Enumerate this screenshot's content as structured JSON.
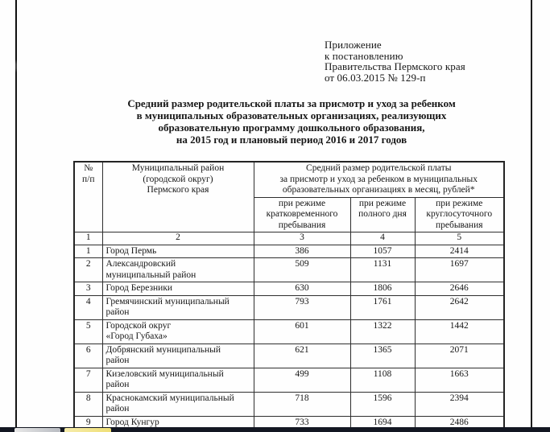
{
  "document": {
    "corner_note": {
      "lines": [
        "Приложение",
        "к постановлению",
        "Правительства Пермского края",
        "от 06.03.2015 № 129-п"
      ]
    },
    "title_lines": [
      "Средний размер родительской платы за присмотр и уход за ребенком",
      "в муниципальных образовательных организациях, реализующих",
      "образовательную программу дошкольного образования,",
      "на 2015 год и плановый период 2016 и 2017 годов"
    ]
  },
  "table": {
    "header": {
      "col_num": "№\nп/п",
      "col_district": "Муниципальный район\n(городской округ)\nПермского края",
      "col_payment_group": "Средний размер родительской платы\nза присмотр и уход за ребенком в муниципальных\nобразовательных организациях в месяц, рублей*",
      "sub_short_stay": "при режиме\nкратковременного\nпребывания",
      "sub_full_day": "при режиме\nполного дня",
      "sub_round_clock": "при режиме\nкруглосуточного\nпребывания"
    },
    "numbering_row": [
      "1",
      "2",
      "3",
      "4",
      "5"
    ],
    "rows": [
      {
        "num": "1",
        "district": "Город Пермь",
        "short_stay": "386",
        "full_day": "1057",
        "round_clock": "2414"
      },
      {
        "num": "2",
        "district": "Александровский\nмуниципальный район",
        "short_stay": "509",
        "full_day": "1131",
        "round_clock": "1697"
      },
      {
        "num": "3",
        "district": "Город Березники",
        "short_stay": "630",
        "full_day": "1806",
        "round_clock": "2646"
      },
      {
        "num": "4",
        "district": "Гремячинский муниципальный\nрайон",
        "short_stay": "793",
        "full_day": "1761",
        "round_clock": "2642"
      },
      {
        "num": "5",
        "district": "Городской округ\n«Город Губаха»",
        "short_stay": "601",
        "full_day": "1322",
        "round_clock": "1442"
      },
      {
        "num": "6",
        "district": "Добрянский муниципальный\nрайон",
        "short_stay": "621",
        "full_day": "1365",
        "round_clock": "2071"
      },
      {
        "num": "7",
        "district": "Кизеловский муниципальный\nрайон",
        "short_stay": "499",
        "full_day": "1108",
        "round_clock": "1663"
      },
      {
        "num": "8",
        "district": "Краснокамский муниципальный\nрайон",
        "short_stay": "718",
        "full_day": "1596",
        "round_clock": "2394"
      },
      {
        "num": "9",
        "district": "Город Кунгур",
        "short_stay": "733",
        "full_day": "1694",
        "round_clock": "2486"
      }
    ]
  }
}
